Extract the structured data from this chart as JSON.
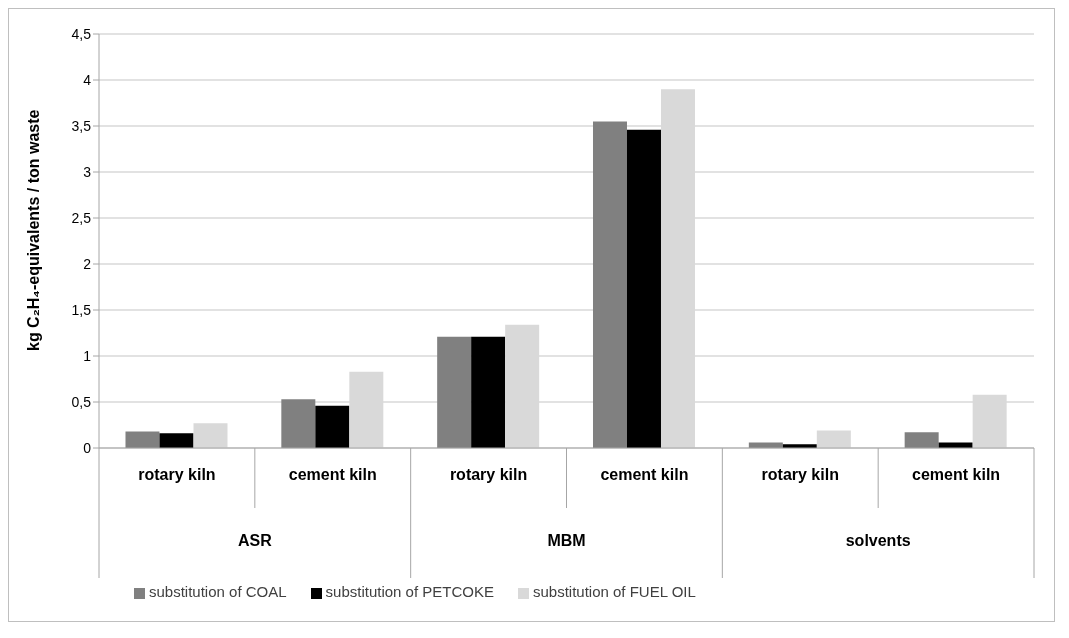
{
  "chart_data": {
    "type": "bar",
    "ylabel": "kg C₂H₄-equivalents / ton waste",
    "categories": [
      "rotary kiln",
      "cement kiln",
      "rotary kiln",
      "cement kiln",
      "rotary kiln",
      "cement kiln"
    ],
    "annotations": [
      "ASR",
      "MBM",
      "solvents"
    ],
    "series": [
      {
        "name": "substitution of COAL",
        "color": "#808080",
        "values": [
          0.18,
          0.53,
          1.21,
          3.55,
          0.06,
          0.17
        ]
      },
      {
        "name": "substitution of PETCOKE",
        "color": "#000000",
        "values": [
          0.16,
          0.46,
          1.21,
          3.46,
          0.04,
          0.06
        ]
      },
      {
        "name": "substitution of FUEL OIL",
        "color": "#d9d9d9",
        "values": [
          0.27,
          0.83,
          1.34,
          3.9,
          0.19,
          0.58
        ]
      }
    ],
    "ylim": [
      0,
      4.5
    ],
    "yticks": [
      0,
      {
        "value": 0.5,
        "label": "0,5"
      },
      1,
      {
        "value": 1.5,
        "label": "1,5"
      },
      2,
      {
        "value": 2.5,
        "label": "2,5"
      },
      3,
      {
        "value": 3.5,
        "label": "3,5"
      },
      4,
      {
        "value": 4.5,
        "label": "4,5"
      }
    ],
    "grid": "y",
    "legend": "bottom"
  }
}
